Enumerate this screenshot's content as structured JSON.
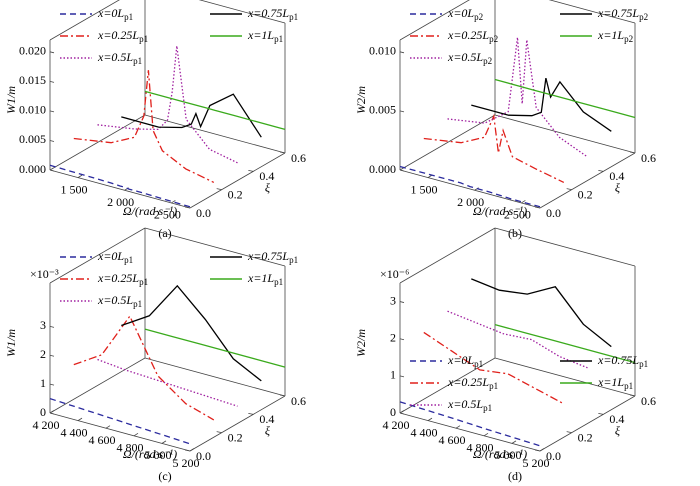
{
  "chart_data": [
    {
      "type": "waterfall3d",
      "caption": "(a)",
      "xlabel": "Ω/(rad·s⁻¹)",
      "ylabel": "ξ",
      "zlabel": "W1/m",
      "legend": "upper left",
      "x": [
        1200,
        1600,
        1850,
        1950,
        2000,
        2050,
        2150,
        2400,
        2700
      ],
      "xlim": [
        1200,
        2700
      ],
      "xticks": [
        {
          "value": 1500,
          "label": "1 500"
        },
        {
          "value": 2000,
          "label": "2 000"
        },
        {
          "value": 2500,
          "label": "2 500"
        }
      ],
      "ylim": [
        0,
        0.6
      ],
      "yticks": [
        {
          "value": 0,
          "label": "0.0"
        },
        0.2,
        0.4,
        0.6
      ],
      "zlim": [
        0,
        0.022
      ],
      "zticks": [
        {
          "value": 0,
          "label": "0.000"
        },
        {
          "value": 0.005,
          "label": "0.005"
        },
        {
          "value": 0.01,
          "label": "0.010"
        },
        {
          "value": 0.015,
          "label": "0.015"
        },
        {
          "value": 0.02,
          "label": "0.020"
        }
      ],
      "series": [
        {
          "name": "x=0Lp1",
          "color": "#2b2b9e",
          "dash": "dashed",
          "y": 0,
          "values": [
            0.0008,
            0.0007,
            0.0006,
            0.0005,
            0.0005,
            0.0004,
            0.0004,
            0.0003,
            0.0002
          ]
        },
        {
          "name": "x=0.25Lp1",
          "color": "#e0201b",
          "dash": "dashdot",
          "y": 0.15,
          "values": [
            0.003,
            0.004,
            0.006,
            0.01,
            0.018,
            0.008,
            0.005,
            0.003,
            0.002
          ]
        },
        {
          "name": "x=0.5Lp1",
          "color": "#a020a0",
          "dash": "dotted",
          "y": 0.3,
          "values": [
            0.003,
            0.004,
            0.005,
            0.007,
            0.012,
            0.02,
            0.008,
            0.004,
            0.003
          ]
        },
        {
          "name": "x=0.75Lp1",
          "color": "#000000",
          "dash": "solid",
          "y": 0.45,
          "values": [
            0.002,
            0.002,
            0.003,
            0.004,
            0.006,
            0.004,
            0.008,
            0.011,
            0.005
          ]
        },
        {
          "name": "x=1Lp1",
          "color": "#3aaa1c",
          "dash": "solid",
          "y": 0.6,
          "values": [
            0.004,
            0.004,
            0.004,
            0.004,
            0.004,
            0.004,
            0.004,
            0.004,
            0.004
          ]
        }
      ]
    },
    {
      "type": "waterfall3d",
      "caption": "(b)",
      "xlabel": "Ω/(rad·s⁻¹)",
      "ylabel": "ξ",
      "zlabel": "W2/m",
      "legend": "upper left",
      "x": [
        1200,
        1600,
        1850,
        1950,
        2000,
        2050,
        2150,
        2400,
        2700
      ],
      "xlim": [
        1200,
        2700
      ],
      "xticks": [
        {
          "value": 1500,
          "label": "1 500"
        },
        {
          "value": 2000,
          "label": "2 000"
        },
        {
          "value": 2500,
          "label": "2 500"
        }
      ],
      "ylim": [
        0,
        0.6
      ],
      "yticks": [
        {
          "value": 0,
          "label": "0.0"
        },
        0.2,
        0.4,
        0.6
      ],
      "zlim": [
        0,
        0.011
      ],
      "zticks": [
        {
          "value": 0,
          "label": "0.000"
        },
        {
          "value": 0.005,
          "label": "0.005"
        },
        {
          "value": 0.01,
          "label": "0.010"
        }
      ],
      "series": [
        {
          "name": "x=0Lp2",
          "color": "#2b2b9e",
          "dash": "dashed",
          "y": 0,
          "values": [
            0.0003,
            0.0003,
            0.0003,
            0.0002,
            0.0002,
            0.0002,
            0.0002,
            0.0001,
            0.0001
          ]
        },
        {
          "name": "x=0.25Lp2",
          "color": "#e0201b",
          "dash": "dashdot",
          "y": 0.15,
          "values": [
            0.0015,
            0.002,
            0.003,
            0.005,
            0.002,
            0.004,
            0.002,
            0.0015,
            0.001
          ]
        },
        {
          "name": "x=0.5Lp2",
          "color": "#a020a0",
          "dash": "dotted",
          "y": 0.3,
          "values": [
            0.002,
            0.0025,
            0.004,
            0.0105,
            0.005,
            0.0105,
            0.005,
            0.003,
            0.002
          ]
        },
        {
          "name": "x=0.75Lp2",
          "color": "#000000",
          "dash": "solid",
          "y": 0.45,
          "values": [
            0.002,
            0.002,
            0.0025,
            0.003,
            0.006,
            0.0045,
            0.006,
            0.004,
            0.003
          ]
        },
        {
          "name": "x=1Lp2",
          "color": "#3aaa1c",
          "dash": "solid",
          "y": 0.6,
          "values": [
            0.003,
            0.003,
            0.003,
            0.003,
            0.003,
            0.003,
            0.003,
            0.003,
            0.003
          ]
        }
      ]
    },
    {
      "type": "waterfall3d",
      "caption": "(c)",
      "xlabel": "Ω/(rad·s⁻¹)",
      "ylabel": "ξ",
      "zlabel": "W1/m",
      "legend": "upper left",
      "exponent": "×10⁻³",
      "x": [
        4200,
        4400,
        4600,
        4800,
        5000,
        5200
      ],
      "xlim": [
        4200,
        5200
      ],
      "xticks": [
        {
          "value": 4200,
          "label": "4 200"
        },
        {
          "value": 4400,
          "label": "4 400"
        },
        {
          "value": 4600,
          "label": "4 600"
        },
        {
          "value": 4800,
          "label": "4 800"
        },
        {
          "value": 5000,
          "label": "5 000"
        },
        {
          "value": 5200,
          "label": "5 200"
        }
      ],
      "ylim": [
        0,
        0.6
      ],
      "yticks": [
        {
          "value": 0,
          "label": "0.0"
        },
        0.2,
        0.4,
        0.6
      ],
      "zlim": [
        0,
        4.5
      ],
      "zticks": [
        0,
        1,
        2,
        3
      ],
      "series": [
        {
          "name": "x=0Lp1",
          "color": "#2b2b9e",
          "dash": "dashed",
          "y": 0,
          "values": [
            0.5,
            0.45,
            0.4,
            0.35,
            0.3,
            0.25
          ]
        },
        {
          "name": "x=0.25Lp1",
          "color": "#e0201b",
          "dash": "dashdot",
          "y": 0.15,
          "values": [
            1.2,
            1.8,
            3.4,
            1.6,
            0.9,
            0.6
          ]
        },
        {
          "name": "x=0.5Lp1",
          "color": "#a020a0",
          "dash": "dotted",
          "y": 0.3,
          "values": [
            0.9,
            0.8,
            0.75,
            0.7,
            0.65,
            0.6
          ]
        },
        {
          "name": "x=0.75Lp1",
          "color": "#000000",
          "dash": "solid",
          "y": 0.45,
          "values": [
            1.6,
            2.2,
            3.5,
            2.6,
            1.5,
            1.0
          ]
        },
        {
          "name": "x=1Lp1",
          "color": "#3aaa1c",
          "dash": "solid",
          "y": 0.6,
          "values": [
            1.0,
            1.0,
            1.0,
            1.0,
            1.0,
            1.0
          ]
        }
      ]
    },
    {
      "type": "waterfall3d",
      "caption": "(d)",
      "xlabel": "Ω/(rad·s⁻¹)",
      "ylabel": "ξ",
      "zlabel": "W2/m",
      "legend": "center left",
      "exponent": "×10⁻⁶",
      "x": [
        4200,
        4400,
        4600,
        4800,
        5000,
        5200
      ],
      "xlim": [
        4200,
        5200
      ],
      "xticks": [
        {
          "value": 4200,
          "label": "4 200"
        },
        {
          "value": 4400,
          "label": "4 400"
        },
        {
          "value": 4600,
          "label": "4 600"
        },
        {
          "value": 4800,
          "label": "4 800"
        },
        {
          "value": 5000,
          "label": "5 000"
        },
        {
          "value": 5200,
          "label": "5 200"
        }
      ],
      "ylim": [
        0,
        0.6
      ],
      "yticks": [
        {
          "value": 0,
          "label": "0.0"
        },
        0.2,
        0.4,
        0.6
      ],
      "zlim": [
        0,
        3.5
      ],
      "zticks": [
        0,
        1,
        2,
        3
      ],
      "series": [
        {
          "name": "x=0Lp1",
          "color": "#2b2b9e",
          "dash": "dashed",
          "y": 0,
          "values": [
            0.3,
            0.27,
            0.24,
            0.2,
            0.17,
            0.14
          ]
        },
        {
          "name": "x=0.25Lp1",
          "color": "#e0201b",
          "dash": "dashdot",
          "y": 0.15,
          "values": [
            1.8,
            1.5,
            1.2,
            1.3,
            1.1,
            0.9
          ]
        },
        {
          "name": "x=0.5Lp1",
          "color": "#a020a0",
          "dash": "dotted",
          "y": 0.3,
          "values": [
            2.0,
            1.9,
            1.8,
            1.85,
            1.6,
            1.5
          ]
        },
        {
          "name": "x=0.75Lp1",
          "color": "#000000",
          "dash": "solid",
          "y": 0.45,
          "values": [
            2.5,
            2.4,
            2.5,
            2.9,
            2.1,
            1.7
          ]
        },
        {
          "name": "x=1Lp1",
          "color": "#3aaa1c",
          "dash": "solid",
          "y": 0.6,
          "values": [
            0.9,
            0.9,
            0.9,
            0.9,
            0.9,
            0.9
          ]
        }
      ]
    }
  ]
}
